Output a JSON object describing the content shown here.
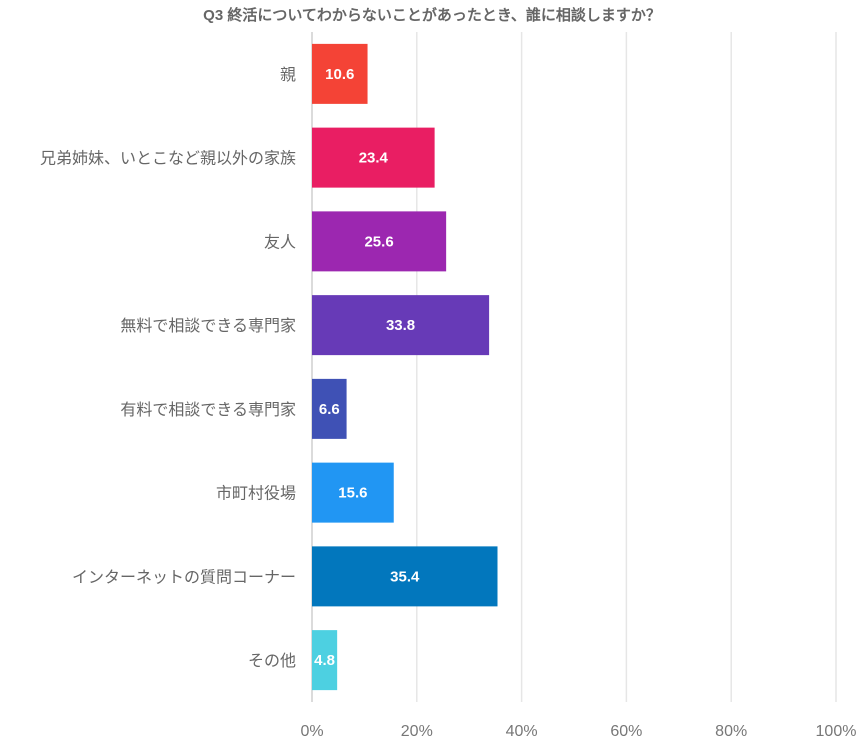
{
  "chart_data": {
    "type": "bar",
    "orientation": "horizontal",
    "title": "Q3 終活についてわからないことがあったとき、誰に相談しますか？",
    "categories": [
      "親",
      "兄弟姉妹、いとこなど親以外の家族",
      "友人",
      "無料で相談できる専門家",
      "有料で相談できる専門家",
      "市町村役場",
      "インターネットの質問コーナー",
      "その他"
    ],
    "values": [
      10.6,
      23.4,
      25.6,
      33.8,
      6.6,
      15.6,
      35.4,
      4.8
    ],
    "colors": [
      "#f44336",
      "#e91e63",
      "#9c27b0",
      "#673ab7",
      "#3f51b5",
      "#2196f3",
      "#0277bd",
      "#4dd0e1"
    ],
    "xlim": [
      0,
      100
    ],
    "xticks": [
      0,
      20,
      40,
      60,
      80,
      100
    ],
    "tick_format": "%",
    "xlabel": "",
    "ylabel": "",
    "grid": true,
    "legend": "none"
  }
}
